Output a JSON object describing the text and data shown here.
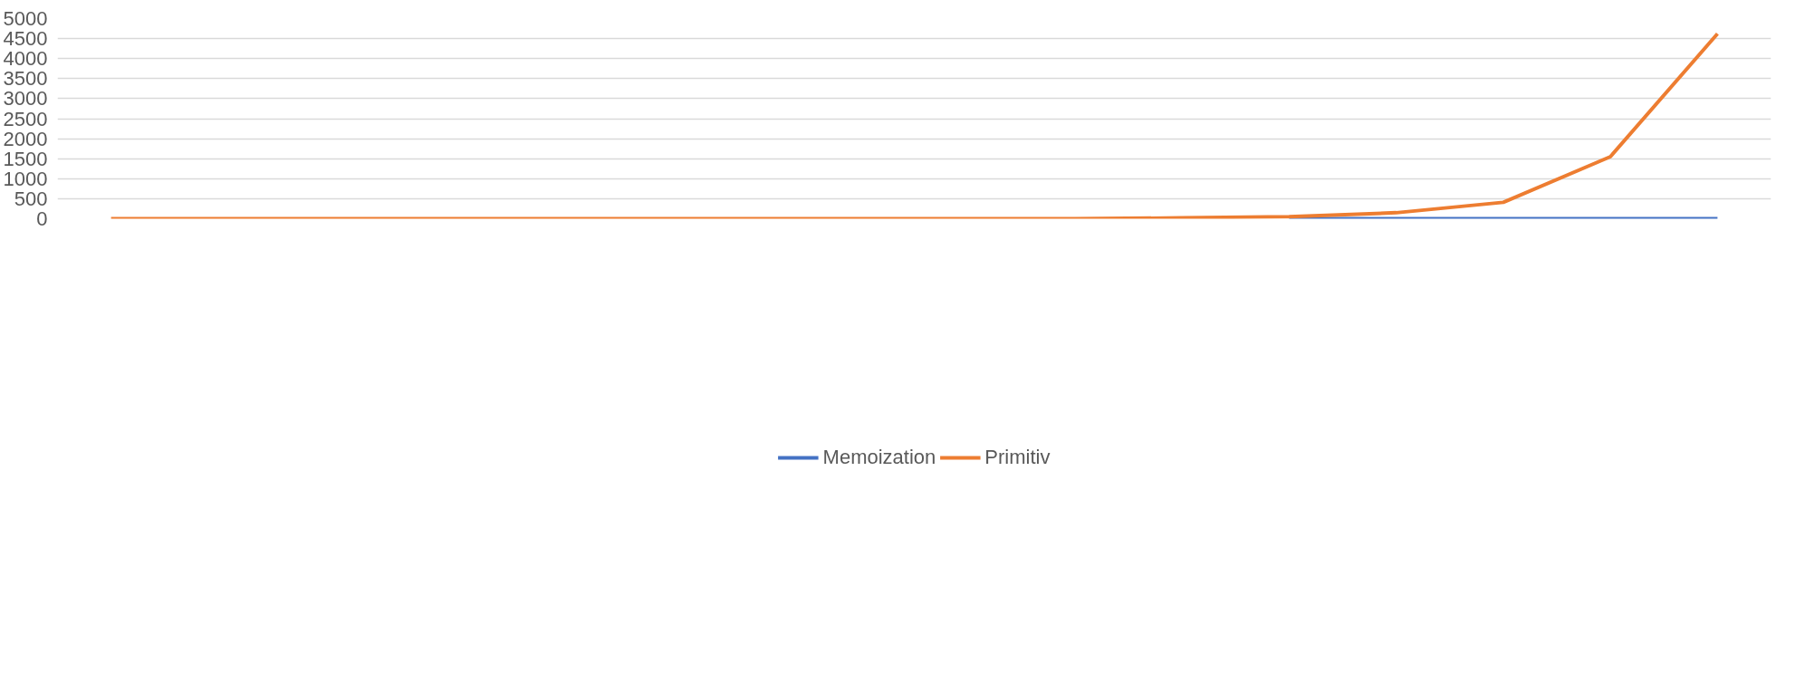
{
  "chart_data": {
    "type": "line",
    "categories": [
      null,
      null,
      null,
      null,
      null,
      null,
      null,
      null,
      null,
      null,
      null,
      null,
      null,
      null,
      null,
      null
    ],
    "series": [
      {
        "name": "Memoization",
        "color": "#4472c4",
        "values": [
          null,
          null,
          null,
          null,
          null,
          null,
          null,
          null,
          null,
          null,
          null,
          0,
          0,
          0,
          0,
          0
        ]
      },
      {
        "name": "Primitiv",
        "color": "#ed7d31",
        "values": [
          0,
          0,
          0,
          0,
          0,
          0,
          0,
          0,
          0,
          0,
          20,
          50,
          150,
          410,
          1550,
          4620
        ]
      }
    ],
    "ylim": [
      0,
      5000
    ],
    "yticks": [
      0,
      500,
      1000,
      1500,
      2000,
      2500,
      3000,
      3500,
      4000,
      4500,
      5000
    ],
    "grid": "y",
    "legend": "bottom",
    "tick_labels": "y",
    "marker": "none",
    "line_style": "solid"
  }
}
